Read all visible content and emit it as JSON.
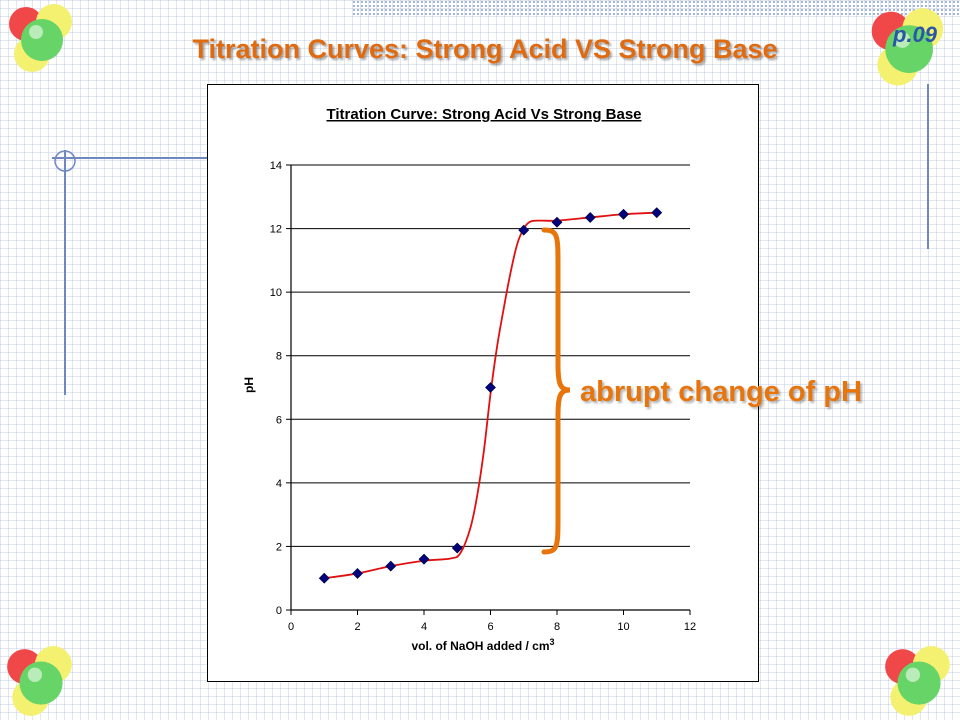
{
  "slide": {
    "title": "Titration Curves:  Strong Acid VS Strong Base",
    "page_number": "p.09",
    "annotation": "abrupt change of pH"
  },
  "colors": {
    "title": "#e06a10",
    "annotation": "#e8740c",
    "page_number": "#2a55a8",
    "curve": "#e01010",
    "marker": "#00007f"
  },
  "icons": [
    "molecule-icon",
    "crosshair-icon",
    "curly-brace-icon"
  ],
  "chart_data": {
    "type": "scatter",
    "title": "Titration Curve:  Strong Acid Vs Strong Base",
    "xlabel": "vol. of NaOH added / cm",
    "xlabel_sup": "3",
    "ylabel": "pH",
    "xlim": [
      0,
      12
    ],
    "ylim": [
      0,
      14
    ],
    "xticks": [
      0,
      2,
      4,
      6,
      8,
      10,
      12
    ],
    "yticks": [
      0,
      2,
      4,
      6,
      8,
      10,
      12,
      14
    ],
    "grid": "horizontal",
    "series": [
      {
        "x": [
          1,
          2,
          3,
          4,
          5,
          6,
          7,
          8,
          9,
          10,
          11
        ],
        "y": [
          1.0,
          1.15,
          1.38,
          1.6,
          1.95,
          7.0,
          11.95,
          12.2,
          12.35,
          12.45,
          12.5
        ]
      }
    ],
    "fit_curve": {
      "x": [
        1,
        2,
        3,
        4,
        4.8,
        5.1,
        5.4,
        5.6,
        5.8,
        6.0,
        6.2,
        6.4,
        6.6,
        6.8,
        7.0,
        7.2,
        7.5,
        8,
        9,
        10,
        11
      ],
      "y": [
        1.0,
        1.15,
        1.38,
        1.55,
        1.62,
        1.8,
        2.6,
        3.6,
        5.0,
        6.8,
        8.3,
        9.5,
        10.6,
        11.5,
        12.0,
        12.22,
        12.25,
        12.25,
        12.35,
        12.45,
        12.5
      ]
    }
  }
}
